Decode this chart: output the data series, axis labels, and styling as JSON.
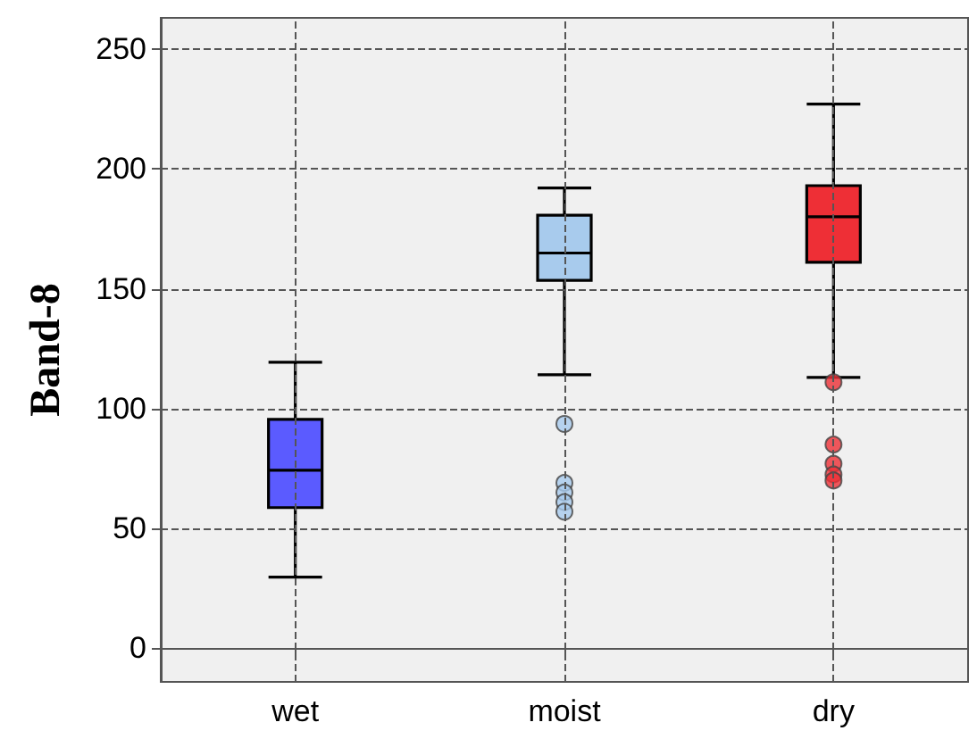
{
  "chart_data": {
    "type": "box",
    "ylabel": "Band-8",
    "categories": [
      "wet",
      "moist",
      "dry"
    ],
    "colors": [
      "#5b5bff",
      "#a8cbed",
      "#ee2f36"
    ],
    "boxes": [
      {
        "low": 29.7,
        "q1": 58.7,
        "median": 74.3,
        "q3": 95.5,
        "high": 119.3
      },
      {
        "low": 114.1,
        "q1": 153.5,
        "median": 164.9,
        "q3": 180.7,
        "high": 192,
        "outliers": [
          93.6,
          69,
          65,
          61,
          57
        ]
      },
      {
        "low": 113,
        "q1": 161,
        "median": 180,
        "q3": 193,
        "high": 227,
        "outliers": [
          111,
          85,
          77,
          72.5,
          70
        ]
      }
    ],
    "ylim": [
      -14,
      263
    ],
    "yticks": [
      0,
      50,
      100,
      150,
      200,
      250
    ],
    "grid": true
  }
}
